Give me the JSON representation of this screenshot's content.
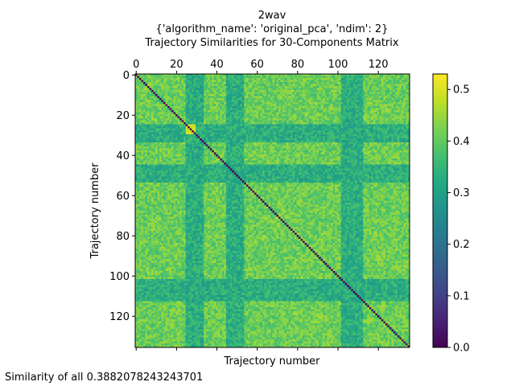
{
  "chart_data": {
    "type": "heatmap",
    "title_lines": [
      "2wav",
      "{'algorithm_name': 'original_pca', 'ndim': 2}",
      "Trajectory Similarities for 30-Components Matrix"
    ],
    "xlabel": "Trajectory number",
    "ylabel": "Trajectory number",
    "n": 136,
    "x_ticks": [
      0,
      20,
      40,
      60,
      80,
      100,
      120
    ],
    "y_ticks": [
      0,
      20,
      40,
      60,
      80,
      100,
      120
    ],
    "x_tick_labels": [
      "0",
      "20",
      "40",
      "60",
      "80",
      "100",
      "120"
    ],
    "y_tick_labels": [
      "0",
      "20",
      "40",
      "60",
      "80",
      "100",
      "120"
    ],
    "x_axis_position": "top",
    "colormap": "viridis",
    "vmin": 0.0,
    "vmax": 0.53,
    "colorbar_ticks": [
      0.0,
      0.1,
      0.2,
      0.3,
      0.4,
      0.5
    ],
    "colorbar_tick_labels": [
      "0.0",
      "0.1",
      "0.2",
      "0.3",
      "0.4",
      "0.5"
    ],
    "diagonal_value": 0.0,
    "base_value": 0.41,
    "low_similarity_bands": [
      [
        25,
        33
      ],
      [
        45,
        53
      ],
      [
        102,
        112
      ]
    ],
    "low_band_value": 0.33,
    "high_similarity_block": [
      25,
      29
    ],
    "high_block_value": 0.5,
    "colors": {
      "viridis": [
        "#440154",
        "#482475",
        "#414487",
        "#355f8d",
        "#2a788e",
        "#21918c",
        "#22a884",
        "#44bf70",
        "#7ad151",
        "#bddf26",
        "#fde725"
      ]
    }
  },
  "footer": {
    "label": "Similarity of all",
    "value": "0.3882078243243701"
  }
}
